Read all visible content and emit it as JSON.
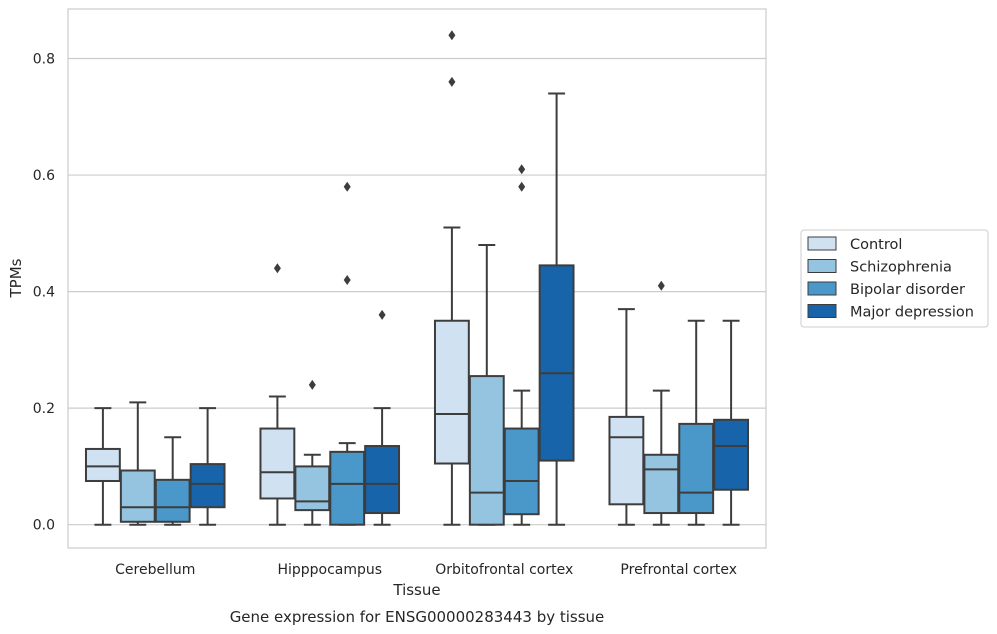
{
  "caption": "Gene expression for ENSG00000283443 by tissue",
  "colors": {
    "Control": "#d0e1f2",
    "Schizophrenia": "#94c4df",
    "Bipolar disorder": "#4a98c9",
    "Major depression": "#1764ab",
    "grid": "#cccccc",
    "frame": "#cccccc",
    "line": "#3d3d3d"
  },
  "chart_data": {
    "type": "box",
    "title": "",
    "xlabel": "Tissue",
    "ylabel": "TPMs",
    "ylim": [
      -0.04,
      0.885
    ],
    "yticks": [
      "0.0",
      "0.2",
      "0.4",
      "0.6",
      "0.8"
    ],
    "grid": "horizontal",
    "legend_position": "right (outside)",
    "categories": [
      "Cerebellum",
      "Hipppocampus",
      "Orbitofrontal cortex",
      "Prefrontal cortex"
    ],
    "series": [
      {
        "name": "Control",
        "boxes": [
          {
            "whislo": 0.0,
            "q1": 0.075,
            "med": 0.1,
            "q3": 0.13,
            "whishi": 0.2,
            "fliers": []
          },
          {
            "whislo": 0.0,
            "q1": 0.045,
            "med": 0.09,
            "q3": 0.165,
            "whishi": 0.22,
            "fliers": [
              0.44
            ]
          },
          {
            "whislo": 0.0,
            "q1": 0.105,
            "med": 0.19,
            "q3": 0.35,
            "whishi": 0.51,
            "fliers": [
              0.76,
              0.84
            ]
          },
          {
            "whislo": 0.0,
            "q1": 0.035,
            "med": 0.15,
            "q3": 0.185,
            "whishi": 0.37,
            "fliers": []
          }
        ]
      },
      {
        "name": "Schizophrenia",
        "boxes": [
          {
            "whislo": 0.0,
            "q1": 0.005,
            "med": 0.03,
            "q3": 0.093,
            "whishi": 0.21,
            "fliers": []
          },
          {
            "whislo": 0.0,
            "q1": 0.025,
            "med": 0.04,
            "q3": 0.1,
            "whishi": 0.12,
            "fliers": [
              0.24
            ]
          },
          {
            "whislo": 0.0,
            "q1": 0.0,
            "med": 0.055,
            "q3": 0.255,
            "whishi": 0.48,
            "fliers": []
          },
          {
            "whislo": 0.0,
            "q1": 0.02,
            "med": 0.095,
            "q3": 0.12,
            "whishi": 0.23,
            "fliers": [
              0.41
            ]
          }
        ]
      },
      {
        "name": "Bipolar disorder",
        "boxes": [
          {
            "whislo": 0.0,
            "q1": 0.005,
            "med": 0.03,
            "q3": 0.077,
            "whishi": 0.15,
            "fliers": []
          },
          {
            "whislo": 0.0,
            "q1": 0.0,
            "med": 0.07,
            "q3": 0.125,
            "whishi": 0.14,
            "fliers": [
              0.42,
              0.58
            ]
          },
          {
            "whislo": 0.0,
            "q1": 0.018,
            "med": 0.075,
            "q3": 0.165,
            "whishi": 0.23,
            "fliers": [
              0.58,
              0.61
            ]
          },
          {
            "whislo": 0.0,
            "q1": 0.02,
            "med": 0.055,
            "q3": 0.173,
            "whishi": 0.35,
            "fliers": []
          }
        ]
      },
      {
        "name": "Major depression",
        "boxes": [
          {
            "whislo": 0.0,
            "q1": 0.03,
            "med": 0.07,
            "q3": 0.104,
            "whishi": 0.2,
            "fliers": []
          },
          {
            "whislo": 0.0,
            "q1": 0.02,
            "med": 0.07,
            "q3": 0.135,
            "whishi": 0.2,
            "fliers": [
              0.36
            ]
          },
          {
            "whislo": 0.0,
            "q1": 0.11,
            "med": 0.26,
            "q3": 0.445,
            "whishi": 0.74,
            "fliers": []
          },
          {
            "whislo": 0.0,
            "q1": 0.06,
            "med": 0.135,
            "q3": 0.18,
            "whishi": 0.35,
            "fliers": []
          }
        ]
      }
    ]
  }
}
